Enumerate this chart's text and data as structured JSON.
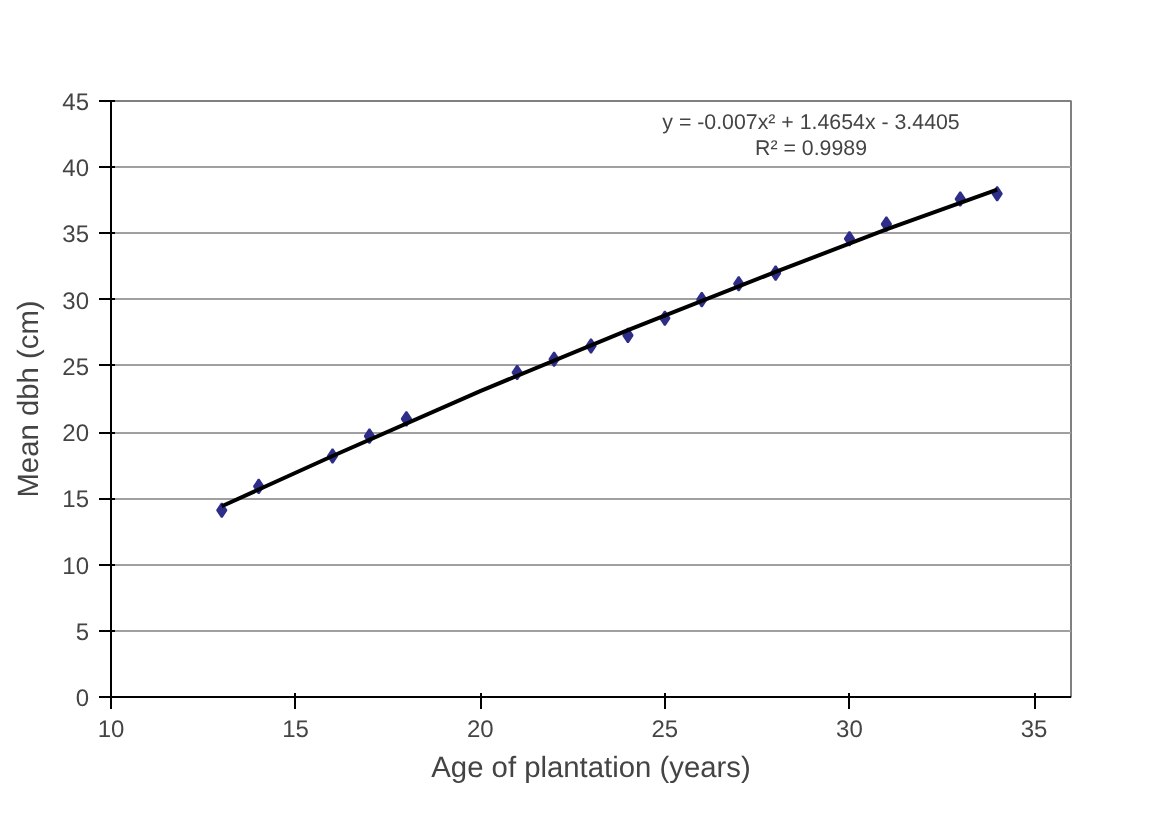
{
  "chart_data": {
    "type": "scatter",
    "xlabel": "Age of plantation (years)",
    "ylabel": "Mean dbh (cm)",
    "series": [
      {
        "color": "#2e2e8a",
        "marker": "diamond",
        "x": [
          13,
          14,
          16,
          17,
          18,
          21,
          22,
          23,
          24,
          25,
          26,
          27,
          28,
          30,
          31,
          33,
          34
        ],
        "values": [
          14.1,
          15.9,
          18.2,
          19.7,
          21.0,
          24.5,
          25.5,
          26.5,
          27.3,
          28.6,
          30.0,
          31.2,
          32.0,
          34.6,
          35.7,
          37.6,
          38.0
        ]
      },
      {
        "type": "line",
        "color": "#000000",
        "x": [
          13,
          16,
          20,
          24,
          28,
          31,
          34
        ],
        "values": [
          14.4,
          18.2,
          23.1,
          27.7,
          32.1,
          35.3,
          38.3
        ]
      }
    ],
    "annotations": [
      "y = -0.007x² + 1.4654x - 3.4405",
      "R² = 0.9989"
    ],
    "xlim": [
      10,
      36
    ],
    "xticks": [
      10,
      15,
      20,
      25,
      30,
      35
    ],
    "ylim": [
      0,
      45
    ],
    "yticks": [
      0,
      5,
      10,
      15,
      20,
      25,
      30,
      35,
      40,
      45
    ],
    "grid": "y"
  }
}
